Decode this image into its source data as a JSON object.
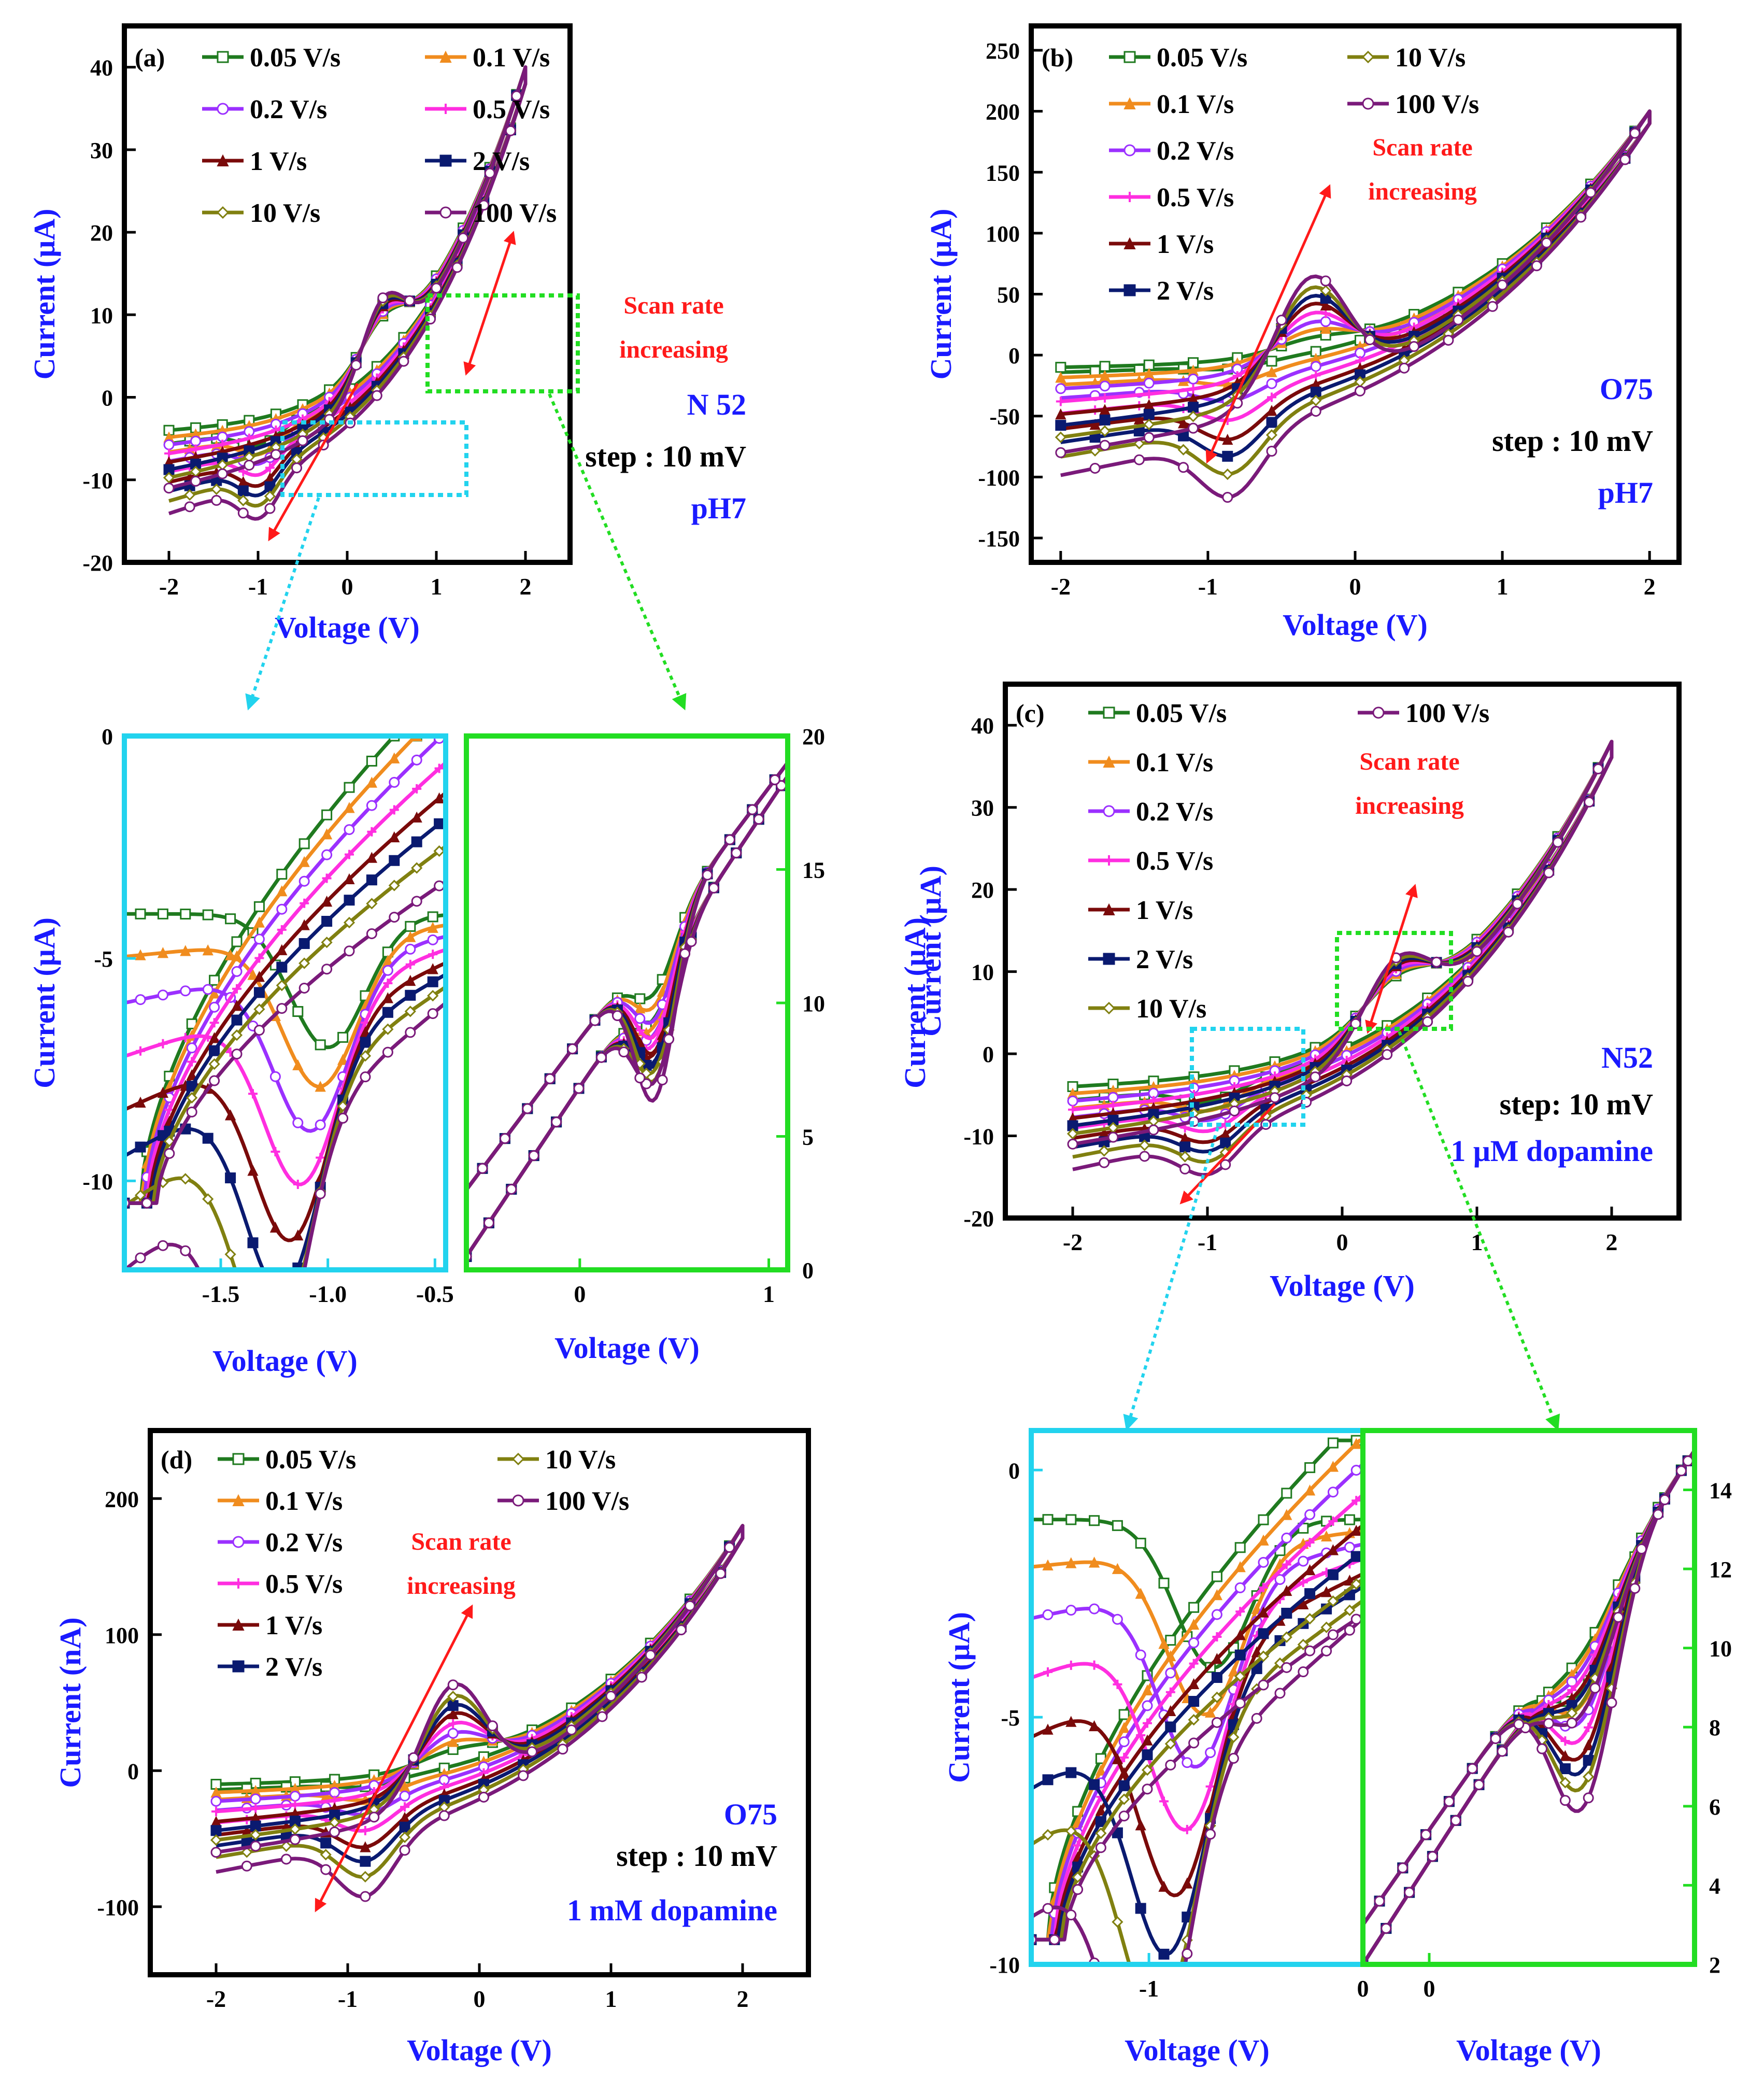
{
  "colors": {
    "0.05": "#1f7a1f",
    "0.1": "#f08c1e",
    "0.2": "#9b30ff",
    "0.5": "#ff2ee0",
    "1": "#7a0a0a",
    "2": "#0a1a70",
    "10": "#808010",
    "100": "#7a1a7a",
    "axis_label": "#1a1aff",
    "annotation": "#ff1a1a",
    "box_cyan": "#22d3ee",
    "box_green": "#22dd22"
  },
  "chart_data": [
    {
      "id": "a",
      "type": "line",
      "panel_label": "(a)",
      "xlabel": "Voltage (V)",
      "ylabel": "Current (μA)",
      "xlim": [
        -2.5,
        2.5
      ],
      "ylim": [
        -20,
        45
      ],
      "xticks": [
        "-2",
        "-1",
        "0",
        "1",
        "2"
      ],
      "xtick_values": [
        -2,
        -1,
        0,
        1,
        2
      ],
      "yticks": [
        "-20",
        "-10",
        "0",
        "10",
        "20",
        "30",
        "40"
      ],
      "ytick_values": [
        -20,
        -10,
        0,
        10,
        20,
        30,
        40
      ],
      "legend": [
        "0.05 V/s",
        "0.1 V/s",
        "0.2 V/s",
        "0.5 V/s",
        "1 V/s",
        "2 V/s",
        "10 V/s",
        "100 V/s"
      ],
      "annotation": [
        "Scan rate",
        "increasing"
      ],
      "notes": [
        {
          "text": "N 52",
          "role": "blue"
        },
        {
          "text": "step : 10 mV",
          "role": "black"
        },
        {
          "text": "pH7",
          "role": "blue"
        }
      ],
      "cv": {
        "imin": 2,
        "imax": 40,
        "cmin": -4,
        "cmax": -11,
        "peak_base": 4,
        "peak_span": 5,
        "peak_v": 0.4,
        "scale": 1
      },
      "series": [
        {
          "name": "0.05 V/s",
          "s": 0
        },
        {
          "name": "0.1 V/s",
          "s": 0.12
        },
        {
          "name": "0.2 V/s",
          "s": 0.25
        },
        {
          "name": "0.5 V/s",
          "s": 0.4
        },
        {
          "name": "1 V/s",
          "s": 0.55
        },
        {
          "name": "2 V/s",
          "s": 0.68
        },
        {
          "name": "10 V/s",
          "s": 0.82
        },
        {
          "name": "100 V/s",
          "s": 1
        }
      ]
    },
    {
      "id": "b",
      "type": "line",
      "panel_label": "(b)",
      "xlabel": "Voltage (V)",
      "ylabel": "Current (μA)",
      "xlim": [
        -2.2,
        2.2
      ],
      "ylim": [
        -170,
        270
      ],
      "xticks": [
        "-2",
        "-1",
        "0",
        "1",
        "2"
      ],
      "xtick_values": [
        -2,
        -1,
        0,
        1,
        2
      ],
      "yticks": [
        "-150",
        "-100",
        "-50",
        "0",
        "50",
        "100",
        "150",
        "200",
        "250"
      ],
      "ytick_values": [
        -150,
        -100,
        -50,
        0,
        50,
        100,
        150,
        200,
        250
      ],
      "legend": [
        "0.05 V/s",
        "10 V/s",
        "0.1 V/s",
        "100 V/s",
        "0.2 V/s",
        "0.5 V/s",
        "1 V/s",
        "2 V/s"
      ],
      "annotation": [
        "Scan rate",
        "increasing"
      ],
      "notes": [
        {
          "text": "O75",
          "role": "blue"
        },
        {
          "text": "step : 10 mV",
          "role": "black"
        },
        {
          "text": "pH7",
          "role": "blue"
        }
      ],
      "cv": {
        "imin": 5,
        "imax": 200,
        "cmin": -10,
        "cmax": -80,
        "peak_base": 8,
        "peak_span": 90,
        "peak_v": -0.3,
        "scale": 1
      },
      "series": [
        {
          "name": "0.05 V/s",
          "s": 0
        },
        {
          "name": "0.1 V/s",
          "s": 0.12
        },
        {
          "name": "0.2 V/s",
          "s": 0.25
        },
        {
          "name": "0.5 V/s",
          "s": 0.4
        },
        {
          "name": "1 V/s",
          "s": 0.55
        },
        {
          "name": "2 V/s",
          "s": 0.68
        },
        {
          "name": "10 V/s",
          "s": 0.82
        },
        {
          "name": "100 V/s",
          "s": 1
        }
      ]
    },
    {
      "id": "a_zoom_neg",
      "type": "line",
      "xlabel": "Voltage (V)",
      "ylabel": "Current (μA)",
      "xlim": [
        -1.95,
        -0.45
      ],
      "ylim": [
        -12,
        0
      ],
      "xticks": [
        "-1.5",
        "-1.0",
        "-0.5"
      ],
      "xtick_values": [
        -1.5,
        -1,
        -0.5
      ],
      "yticks": [
        "-10",
        "-5",
        "0"
      ],
      "ytick_values": [
        -10,
        -5,
        0
      ],
      "series": [
        {
          "name": "0.05 V/s",
          "s": 0
        },
        {
          "name": "0.1 V/s",
          "s": 0.12
        },
        {
          "name": "0.2 V/s",
          "s": 0.25
        },
        {
          "name": "0.5 V/s",
          "s": 0.4
        },
        {
          "name": "1 V/s",
          "s": 0.55
        },
        {
          "name": "2 V/s",
          "s": 0.68
        },
        {
          "name": "10 V/s",
          "s": 0.82
        },
        {
          "name": "100 V/s",
          "s": 1
        }
      ]
    },
    {
      "id": "a_zoom_pos",
      "type": "line",
      "xlabel": "Voltage (V)",
      "ylabel": "Current (μA)",
      "xlim": [
        -0.6,
        1.1
      ],
      "ylim": [
        0,
        20
      ],
      "xticks": [
        "0",
        "1"
      ],
      "xtick_values": [
        0,
        1
      ],
      "yticks": [
        "0",
        "5",
        "10",
        "15",
        "20"
      ],
      "ytick_values": [
        0,
        5,
        10,
        15,
        20
      ],
      "series": [
        {
          "name": "0.05 V/s",
          "s": 0
        },
        {
          "name": "0.1 V/s",
          "s": 0.12
        },
        {
          "name": "0.2 V/s",
          "s": 0.25
        },
        {
          "name": "0.5 V/s",
          "s": 0.4
        },
        {
          "name": "1 V/s",
          "s": 0.55
        },
        {
          "name": "2 V/s",
          "s": 0.68
        },
        {
          "name": "10 V/s",
          "s": 0.82
        },
        {
          "name": "100 V/s",
          "s": 1
        }
      ]
    },
    {
      "id": "c",
      "type": "line",
      "panel_label": "(c)",
      "xlabel": "Voltage (V)",
      "ylabel": "Current (μA)",
      "xlim": [
        -2.5,
        2.5
      ],
      "ylim": [
        -20,
        45
      ],
      "xticks": [
        "-2",
        "-1",
        "0",
        "1",
        "2"
      ],
      "xtick_values": [
        -2,
        -1,
        0,
        1,
        2
      ],
      "yticks": [
        "-20",
        "-10",
        "0",
        "10",
        "20",
        "30",
        "40"
      ],
      "ytick_values": [
        -20,
        -10,
        0,
        10,
        20,
        30,
        40
      ],
      "legend": [
        "0.05 V/s",
        "100 V/s",
        "0.1 V/s",
        "0.2 V/s",
        "0.5 V/s",
        "1 V/s",
        "2 V/s",
        "10 V/s"
      ],
      "annotation": [
        "Scan rate",
        "increasing"
      ],
      "notes": [
        {
          "text": "N52",
          "role": "blue"
        },
        {
          "text": "step: 10 mV",
          "role": "black"
        },
        {
          "text": "1 μM dopamine",
          "role": "blue"
        }
      ],
      "cv": {
        "imin": 2,
        "imax": 38,
        "cmin": -4,
        "cmax": -11,
        "peak_base": 4,
        "peak_span": 5,
        "peak_v": 0.4,
        "scale": 1
      },
      "series": [
        {
          "name": "0.05 V/s",
          "s": 0
        },
        {
          "name": "0.1 V/s",
          "s": 0.12
        },
        {
          "name": "0.2 V/s",
          "s": 0.25
        },
        {
          "name": "0.5 V/s",
          "s": 0.4
        },
        {
          "name": "1 V/s",
          "s": 0.55
        },
        {
          "name": "2 V/s",
          "s": 0.68
        },
        {
          "name": "10 V/s",
          "s": 0.82
        },
        {
          "name": "100 V/s",
          "s": 1
        }
      ]
    },
    {
      "id": "d",
      "type": "line",
      "panel_label": "(d)",
      "xlabel": "Voltage (V)",
      "ylabel": "Current (nA)",
      "xlim": [
        -2.5,
        2.5
      ],
      "ylim": [
        -150,
        250
      ],
      "xticks": [
        "-2",
        "-1",
        "0",
        "1",
        "2"
      ],
      "xtick_values": [
        -2,
        -1,
        0,
        1,
        2
      ],
      "yticks": [
        "-100",
        "0",
        "100",
        "200"
      ],
      "ytick_values": [
        -100,
        0,
        100,
        200
      ],
      "legend": [
        "0.05 V/s",
        "10 V/s",
        "0.1 V/s",
        "100 V/s",
        "0.2 V/s",
        "0.5 V/s",
        "1 V/s",
        "2 V/s"
      ],
      "annotation": [
        "Scan rate",
        "increasing"
      ],
      "notes": [
        {
          "text": "O75",
          "role": "blue"
        },
        {
          "text": "step : 10 mV",
          "role": "black"
        },
        {
          "text": "1 mM dopamine",
          "role": "blue"
        }
      ],
      "cv": {
        "imin": 5,
        "imax": 180,
        "cmin": -10,
        "cmax": -60,
        "peak_base": 8,
        "peak_span": 75,
        "peak_v": -0.2,
        "scale": 1
      },
      "series": [
        {
          "name": "0.05 V/s",
          "s": 0
        },
        {
          "name": "0.1 V/s",
          "s": 0.12
        },
        {
          "name": "0.2 V/s",
          "s": 0.25
        },
        {
          "name": "0.5 V/s",
          "s": 0.4
        },
        {
          "name": "1 V/s",
          "s": 0.55
        },
        {
          "name": "2 V/s",
          "s": 0.68
        },
        {
          "name": "10 V/s",
          "s": 0.82
        },
        {
          "name": "100 V/s",
          "s": 1
        }
      ]
    },
    {
      "id": "c_zoom_neg",
      "type": "line",
      "xlabel": "Voltage (V)",
      "ylabel": "Current (μA)",
      "xlim": [
        -1.55,
        0
      ],
      "ylim": [
        -10,
        0.8
      ],
      "xticks": [
        "-1",
        "0"
      ],
      "xtick_values": [
        -1,
        0
      ],
      "yticks": [
        "-10",
        "-5",
        "0"
      ],
      "ytick_values": [
        -10,
        -5,
        0
      ],
      "series": [
        {
          "name": "0.05 V/s",
          "s": 0
        },
        {
          "name": "0.1 V/s",
          "s": 0.12
        },
        {
          "name": "0.2 V/s",
          "s": 0.25
        },
        {
          "name": "0.5 V/s",
          "s": 0.4
        },
        {
          "name": "1 V/s",
          "s": 0.55
        },
        {
          "name": "2 V/s",
          "s": 0.68
        },
        {
          "name": "10 V/s",
          "s": 0.82
        },
        {
          "name": "100 V/s",
          "s": 1
        }
      ]
    },
    {
      "id": "c_zoom_pos",
      "type": "line",
      "xlabel": "Voltage (V)",
      "ylabel": "Current (μA)",
      "xlim": [
        -0.3,
        1.2
      ],
      "ylim": [
        2,
        15.5
      ],
      "xticks": [
        "0"
      ],
      "xtick_values": [
        0
      ],
      "yticks": [
        "2",
        "4",
        "6",
        "8",
        "10",
        "12",
        "14"
      ],
      "ytick_values": [
        2,
        4,
        6,
        8,
        10,
        12,
        14
      ],
      "series": [
        {
          "name": "0.05 V/s",
          "s": 0
        },
        {
          "name": "0.1 V/s",
          "s": 0.12
        },
        {
          "name": "0.2 V/s",
          "s": 0.25
        },
        {
          "name": "0.5 V/s",
          "s": 0.4
        },
        {
          "name": "1 V/s",
          "s": 0.55
        },
        {
          "name": "2 V/s",
          "s": 0.68
        },
        {
          "name": "10 V/s",
          "s": 0.82
        },
        {
          "name": "100 V/s",
          "s": 1
        }
      ]
    }
  ]
}
